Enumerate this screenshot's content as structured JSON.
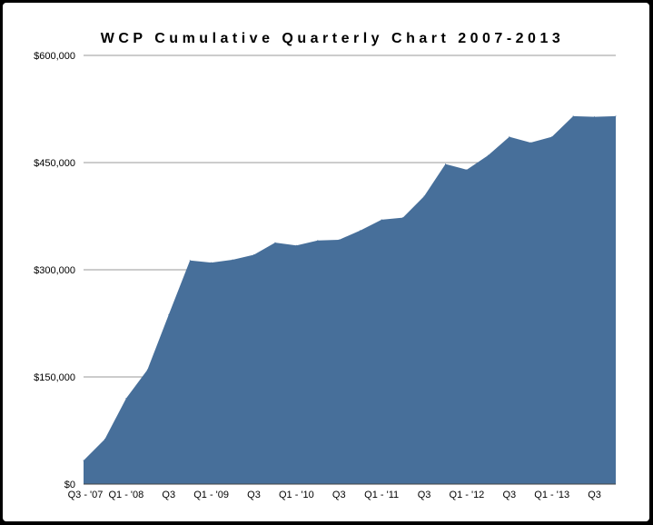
{
  "chart_data": {
    "type": "area",
    "title": "WCP Cumulative Quarterly Chart 2007-2013",
    "xlabel": "",
    "ylabel": "",
    "ylim": [
      0,
      600000
    ],
    "yticks": [
      0,
      150000,
      300000,
      450000,
      600000
    ],
    "ytick_labels": [
      "$0",
      "$150,000",
      "$300,000",
      "$450,000",
      "$600,000"
    ],
    "grid": true,
    "legend": "none",
    "x": [
      "Q3 - '07",
      "Q4 - '07",
      "Q1 - '08",
      "Q2 - '08",
      "Q3 - '08",
      "Q4 - '08",
      "Q1 - '09",
      "Q2 - '09",
      "Q3 - '09",
      "Q4 - '09",
      "Q1 - '10",
      "Q2 - '10",
      "Q3 - '10",
      "Q4 - '10",
      "Q1 - '11",
      "Q2 - '11",
      "Q3 - '11",
      "Q4 - '11",
      "Q1 - '12",
      "Q2 - '12",
      "Q3 - '12",
      "Q4 - '12",
      "Q1 - '13",
      "Q2 - '13",
      "Q3 - '13",
      "Q4 - '13"
    ],
    "xtick_labels": [
      {
        "index": 0,
        "label": "Q3 - '07"
      },
      {
        "index": 2,
        "label": "Q1 - '08"
      },
      {
        "index": 4,
        "label": "Q3"
      },
      {
        "index": 6,
        "label": "Q1 - '09"
      },
      {
        "index": 8,
        "label": "Q3"
      },
      {
        "index": 10,
        "label": "Q1 - '10"
      },
      {
        "index": 12,
        "label": "Q3"
      },
      {
        "index": 14,
        "label": "Q1 - '11"
      },
      {
        "index": 16,
        "label": "Q3"
      },
      {
        "index": 18,
        "label": "Q1 - '12"
      },
      {
        "index": 20,
        "label": "Q3"
      },
      {
        "index": 22,
        "label": "Q1 - '13"
      },
      {
        "index": 24,
        "label": "Q3"
      }
    ],
    "series": [
      {
        "values": [
          33000,
          63000,
          120000,
          160000,
          237000,
          313000,
          310000,
          314000,
          321000,
          338000,
          334000,
          341000,
          342000,
          355000,
          370000,
          373000,
          403000,
          448000,
          440000,
          460000,
          486000,
          478000,
          486000,
          515000,
          514000,
          515000
        ],
        "color": "#476f9a"
      }
    ]
  }
}
